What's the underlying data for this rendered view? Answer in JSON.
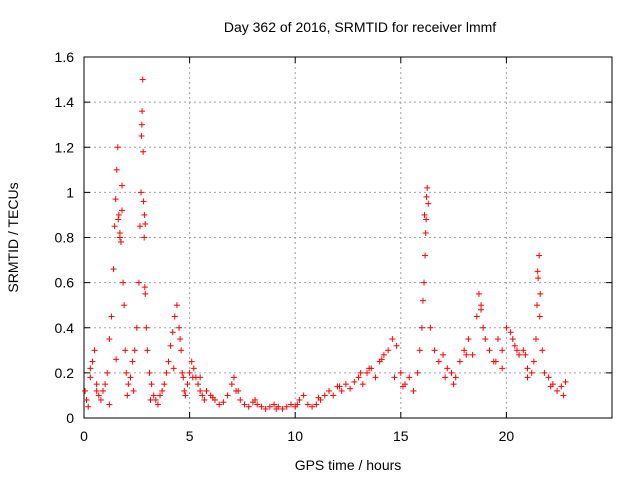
{
  "chart_data": {
    "type": "scatter",
    "title": "Day 362 of 2016, SRMTID for receiver lmmf",
    "xlabel": "GPS time / hours",
    "ylabel": "SRMTID / TECUs",
    "xlim": [
      0,
      25
    ],
    "ylim": [
      0,
      1.6
    ],
    "xticks": [
      0,
      5,
      10,
      15,
      20
    ],
    "xtick_labels": [
      "0",
      "5",
      "10",
      "15",
      "20"
    ],
    "yticks": [
      0,
      0.2,
      0.4,
      0.6,
      0.8,
      1,
      1.2,
      1.4,
      1.6
    ],
    "ytick_labels": [
      "0",
      "0.2",
      "0.4",
      "0.6",
      "0.8",
      "1",
      "1.2",
      "1.4",
      "1.6"
    ],
    "grid": true,
    "marker": "+",
    "series": [
      {
        "name": "SRMTID",
        "color": "#ff0000",
        "x": [
          0.05,
          0.12,
          0.2,
          0.3,
          0.4,
          0.5,
          0.6,
          0.7,
          0.8,
          0.9,
          1.0,
          1.1,
          1.2,
          1.3,
          1.4,
          1.45,
          1.5,
          1.55,
          1.6,
          1.65,
          1.7,
          1.75,
          1.8,
          1.85,
          1.9,
          1.95,
          2.0,
          2.1,
          2.2,
          2.3,
          2.4,
          2.5,
          2.6,
          2.65,
          2.7,
          2.72,
          2.75,
          2.78,
          2.8,
          2.82,
          2.85,
          2.88,
          2.9,
          2.95,
          3.0,
          3.1,
          3.2,
          3.3,
          3.4,
          3.5,
          3.6,
          3.7,
          3.8,
          3.9,
          4.0,
          4.1,
          4.2,
          4.3,
          4.4,
          4.5,
          4.6,
          4.65,
          4.7,
          4.75,
          4.8,
          4.9,
          5.0,
          5.1,
          5.2,
          5.3,
          5.4,
          5.5,
          5.6,
          5.7,
          5.8,
          6.0,
          6.2,
          6.4,
          6.6,
          6.8,
          7.0,
          7.1,
          7.2,
          7.4,
          7.6,
          7.8,
          8.0,
          8.2,
          8.4,
          8.6,
          8.8,
          9.0,
          9.2,
          9.4,
          9.6,
          9.8,
          10.0,
          10.2,
          10.4,
          10.6,
          10.8,
          11.0,
          11.2,
          11.4,
          11.6,
          11.8,
          12.0,
          12.2,
          12.4,
          12.6,
          12.8,
          13.0,
          13.2,
          13.4,
          13.6,
          13.8,
          14.0,
          14.2,
          14.4,
          14.6,
          14.8,
          15.0,
          15.2,
          15.4,
          15.6,
          15.8,
          15.9,
          16.0,
          16.05,
          16.1,
          16.15,
          16.2,
          16.25,
          16.3,
          16.4,
          16.6,
          16.8,
          17.0,
          17.2,
          17.4,
          17.6,
          17.8,
          18.0,
          18.2,
          18.4,
          18.6,
          18.7,
          18.8,
          18.9,
          19.0,
          19.2,
          19.4,
          19.6,
          19.8,
          20.0,
          20.2,
          20.4,
          20.6,
          20.8,
          21.0,
          21.2,
          21.3,
          21.4,
          21.45,
          21.5,
          21.55,
          21.6,
          21.7,
          21.8,
          22.0,
          22.2,
          22.4,
          22.6,
          22.8,
          0.3,
          0.6,
          1.2,
          1.52,
          2.05,
          2.35,
          2.74,
          2.86,
          3.15,
          4.25,
          4.55,
          5.15,
          6.1,
          7.3,
          8.1,
          9.1,
          10.1,
          11.1,
          12.1,
          13.1,
          14.1,
          14.7,
          15.1,
          16.12,
          16.22,
          17.1,
          18.1,
          18.8,
          19.5,
          20.3,
          20.9,
          21.48,
          21.58,
          22.1,
          22.7,
          5.5,
          13.5,
          17.5,
          19.8,
          20.5,
          21.0,
          1.62,
          1.7,
          1.8,
          2.9,
          16.18
        ],
        "y": [
          0.12,
          0.08,
          0.05,
          0.18,
          0.25,
          0.3,
          0.15,
          0.1,
          0.08,
          0.12,
          0.15,
          0.2,
          0.35,
          0.45,
          0.66,
          0.85,
          0.97,
          1.1,
          1.2,
          0.9,
          0.82,
          0.78,
          1.03,
          0.6,
          0.5,
          0.3,
          0.2,
          0.15,
          0.18,
          0.25,
          0.3,
          0.4,
          0.6,
          0.85,
          1.0,
          1.25,
          1.36,
          1.5,
          1.18,
          0.96,
          0.8,
          0.58,
          0.55,
          0.4,
          0.3,
          0.2,
          0.15,
          0.1,
          0.08,
          0.06,
          0.1,
          0.12,
          0.15,
          0.2,
          0.25,
          0.32,
          0.38,
          0.45,
          0.5,
          0.4,
          0.3,
          0.2,
          0.18,
          0.12,
          0.1,
          0.15,
          0.2,
          0.25,
          0.22,
          0.18,
          0.15,
          0.12,
          0.1,
          0.08,
          0.12,
          0.1,
          0.08,
          0.06,
          0.07,
          0.1,
          0.15,
          0.18,
          0.12,
          0.08,
          0.06,
          0.05,
          0.07,
          0.06,
          0.05,
          0.04,
          0.05,
          0.06,
          0.05,
          0.04,
          0.05,
          0.06,
          0.05,
          0.08,
          0.1,
          0.06,
          0.05,
          0.06,
          0.08,
          0.1,
          0.12,
          0.1,
          0.14,
          0.12,
          0.15,
          0.13,
          0.16,
          0.18,
          0.15,
          0.2,
          0.22,
          0.18,
          0.25,
          0.28,
          0.3,
          0.35,
          0.32,
          0.2,
          0.15,
          0.18,
          0.12,
          0.2,
          0.3,
          0.4,
          0.52,
          0.6,
          0.72,
          0.88,
          1.02,
          0.95,
          0.4,
          0.3,
          0.25,
          0.28,
          0.22,
          0.2,
          0.18,
          0.25,
          0.3,
          0.35,
          0.28,
          0.45,
          0.55,
          0.48,
          0.4,
          0.35,
          0.3,
          0.25,
          0.35,
          0.3,
          0.4,
          0.38,
          0.32,
          0.28,
          0.3,
          0.22,
          0.2,
          0.25,
          0.35,
          0.5,
          0.62,
          0.72,
          0.55,
          0.3,
          0.2,
          0.18,
          0.15,
          0.12,
          0.14,
          0.16,
          0.22,
          0.12,
          0.06,
          0.26,
          0.1,
          0.12,
          1.3,
          0.9,
          0.08,
          0.22,
          0.35,
          0.18,
          0.09,
          0.12,
          0.08,
          0.04,
          0.06,
          0.09,
          0.14,
          0.2,
          0.26,
          0.18,
          0.14,
          0.9,
          0.98,
          0.18,
          0.28,
          0.5,
          0.25,
          0.35,
          0.28,
          0.65,
          0.45,
          0.14,
          0.1,
          0.18,
          0.22,
          0.15,
          0.22,
          0.3,
          0.18,
          0.88,
          0.8,
          0.92,
          0.86,
          0.82
        ]
      }
    ]
  }
}
